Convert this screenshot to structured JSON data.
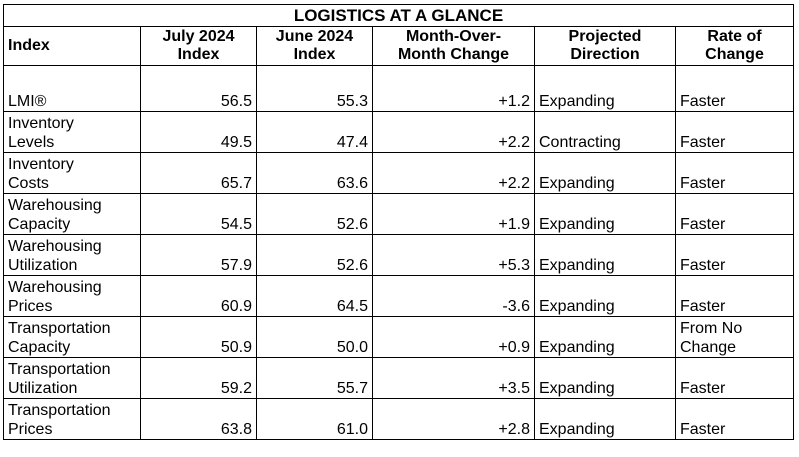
{
  "title": "LOGISTICS AT A GLANCE",
  "headers": [
    [
      "Index"
    ],
    [
      "July 2024",
      "Index"
    ],
    [
      "June 2024",
      "Index"
    ],
    [
      "Month-Over-",
      "Month Change"
    ],
    [
      "Projected",
      "Direction"
    ],
    [
      "Rate of",
      "Change"
    ]
  ],
  "rows": [
    {
      "index": [
        "LMI®"
      ],
      "july": "56.5",
      "june": "55.3",
      "change": "+1.2",
      "direction": "Expanding",
      "rate": [
        "Faster"
      ]
    },
    {
      "index": [
        "Inventory",
        "Levels"
      ],
      "july": "49.5",
      "june": "47.4",
      "change": "+2.2",
      "direction": "Contracting",
      "rate": [
        "Faster"
      ]
    },
    {
      "index": [
        "Inventory",
        "Costs"
      ],
      "july": "65.7",
      "june": "63.6",
      "change": "+2.2",
      "direction": "Expanding",
      "rate": [
        "Faster"
      ]
    },
    {
      "index": [
        "Warehousing",
        "Capacity"
      ],
      "july": "54.5",
      "june": "52.6",
      "change": "+1.9",
      "direction": "Expanding",
      "rate": [
        "Faster"
      ]
    },
    {
      "index": [
        "Warehousing",
        "Utilization"
      ],
      "july": "57.9",
      "june": "52.6",
      "change": "+5.3",
      "direction": "Expanding",
      "rate": [
        "Faster"
      ]
    },
    {
      "index": [
        "Warehousing",
        "Prices"
      ],
      "july": "60.9",
      "june": "64.5",
      "change": "-3.6",
      "direction": "Expanding",
      "rate": [
        "Faster"
      ]
    },
    {
      "index": [
        "Transportation",
        "Capacity"
      ],
      "july": "50.9",
      "june": "50.0",
      "change": "+0.9",
      "direction": "Expanding",
      "rate": [
        "From No",
        "Change"
      ]
    },
    {
      "index": [
        "Transportation",
        "Utilization"
      ],
      "july": "59.2",
      "june": "55.7",
      "change": "+3.5",
      "direction": "Expanding",
      "rate": [
        "Faster"
      ]
    },
    {
      "index": [
        "Transportation",
        "Prices"
      ],
      "july": "63.8",
      "june": "61.0",
      "change": "+2.8",
      "direction": "Expanding",
      "rate": [
        "Faster"
      ]
    }
  ]
}
